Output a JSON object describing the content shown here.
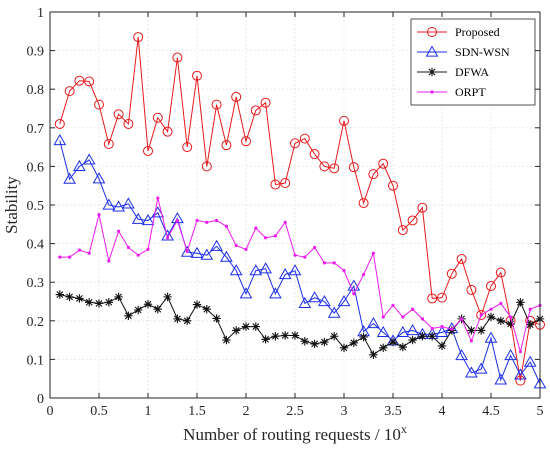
{
  "chart_data": {
    "type": "line",
    "title": "",
    "xlabel": "Number of routing requests / 10",
    "xlabel_superscript": "x",
    "ylabel": "Stability",
    "xlim": [
      0,
      5
    ],
    "ylim": [
      0,
      1
    ],
    "xticks": [
      "0",
      "0.5",
      "1",
      "1.5",
      "2",
      "2.5",
      "3",
      "3.5",
      "4",
      "4.5",
      "5"
    ],
    "yticks": [
      "0",
      "0.1",
      "0.2",
      "0.3",
      "0.4",
      "0.5",
      "0.6",
      "0.7",
      "0.8",
      "0.9",
      "1"
    ],
    "grid": true,
    "legend_position": "top-right",
    "x": [
      0.1,
      0.2,
      0.3,
      0.4,
      0.5,
      0.6,
      0.7,
      0.8,
      0.9,
      1.0,
      1.1,
      1.2,
      1.3,
      1.4,
      1.5,
      1.6,
      1.7,
      1.8,
      1.9,
      2.0,
      2.1,
      2.2,
      2.3,
      2.4,
      2.5,
      2.6,
      2.7,
      2.8,
      2.9,
      3.0,
      3.1,
      3.2,
      3.3,
      3.4,
      3.5,
      3.6,
      3.7,
      3.8,
      3.9,
      4.0,
      4.1,
      4.2,
      4.3,
      4.4,
      4.5,
      4.6,
      4.7,
      4.8,
      4.9,
      5.0
    ],
    "series": [
      {
        "name": "Proposed",
        "color": "#e8191b",
        "marker": "circle",
        "values": [
          0.71,
          0.795,
          0.822,
          0.82,
          0.76,
          0.658,
          0.735,
          0.71,
          0.935,
          0.64,
          0.726,
          0.69,
          0.882,
          0.65,
          0.835,
          0.6,
          0.76,
          0.655,
          0.78,
          0.665,
          0.745,
          0.765,
          0.553,
          0.557,
          0.66,
          0.672,
          0.632,
          0.6,
          0.595,
          0.718,
          0.598,
          0.505,
          0.58,
          0.607,
          0.55,
          0.435,
          0.46,
          0.493,
          0.258,
          0.26,
          0.322,
          0.36,
          0.28,
          0.215,
          0.29,
          0.325,
          0.2,
          0.045,
          0.2,
          0.19
        ]
      },
      {
        "name": "SDN-WSN",
        "color": "#1b2ee8",
        "marker": "triangle",
        "values": [
          0.667,
          0.567,
          0.6,
          0.617,
          0.568,
          0.5,
          0.495,
          0.503,
          0.463,
          0.46,
          0.48,
          0.42,
          0.465,
          0.378,
          0.375,
          0.37,
          0.393,
          0.365,
          0.33,
          0.27,
          0.33,
          0.335,
          0.27,
          0.32,
          0.33,
          0.245,
          0.26,
          0.25,
          0.22,
          0.25,
          0.29,
          0.172,
          0.193,
          0.17,
          0.148,
          0.17,
          0.175,
          0.165,
          0.165,
          0.17,
          0.18,
          0.11,
          0.065,
          0.075,
          0.155,
          0.047,
          0.11,
          0.06,
          0.093,
          0.037
        ]
      },
      {
        "name": "DFWA",
        "color": "#111111",
        "marker": "star",
        "values": [
          0.268,
          0.262,
          0.258,
          0.248,
          0.245,
          0.248,
          0.262,
          0.213,
          0.228,
          0.243,
          0.23,
          0.262,
          0.205,
          0.2,
          0.242,
          0.23,
          0.206,
          0.15,
          0.175,
          0.185,
          0.185,
          0.152,
          0.16,
          0.162,
          0.162,
          0.147,
          0.14,
          0.145,
          0.16,
          0.13,
          0.143,
          0.158,
          0.112,
          0.13,
          0.145,
          0.132,
          0.15,
          0.16,
          0.16,
          0.135,
          0.175,
          0.205,
          0.175,
          0.175,
          0.21,
          0.2,
          0.192,
          0.248,
          0.19,
          0.205
        ]
      },
      {
        "name": "ORPT",
        "color": "#ef1bef",
        "marker": "dot",
        "values": [
          0.365,
          0.365,
          0.383,
          0.375,
          0.475,
          0.355,
          0.432,
          0.39,
          0.37,
          0.385,
          0.518,
          0.415,
          0.46,
          0.38,
          0.46,
          0.455,
          0.46,
          0.445,
          0.395,
          0.385,
          0.44,
          0.415,
          0.42,
          0.455,
          0.37,
          0.365,
          0.39,
          0.35,
          0.35,
          0.33,
          0.27,
          0.32,
          0.375,
          0.21,
          0.24,
          0.21,
          0.23,
          0.205,
          0.18,
          0.185,
          0.178,
          0.205,
          0.148,
          0.215,
          0.23,
          0.245,
          0.21,
          0.12,
          0.23,
          0.24
        ]
      }
    ]
  }
}
